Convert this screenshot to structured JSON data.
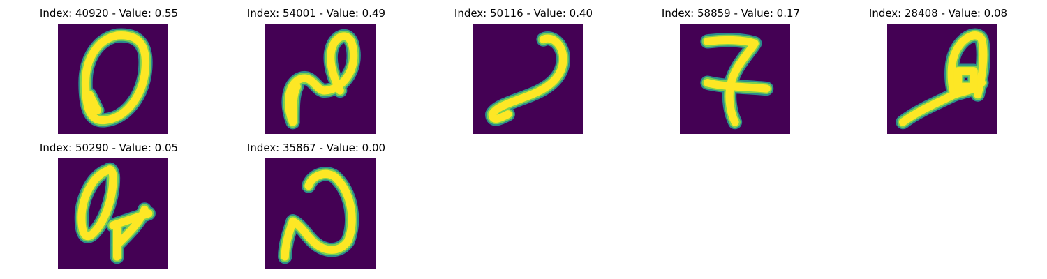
{
  "colors": {
    "background": "#440154",
    "edge": "#2c8c8c",
    "mid": "#7ad151",
    "stroke": "#fde725"
  },
  "panels": [
    {
      "title": "Index: 40920 - Value: 0.55"
    },
    {
      "title": "Index: 54001 - Value: 0.49"
    },
    {
      "title": "Index: 50116 - Value: 0.40"
    },
    {
      "title": "Index: 58859 - Value: 0.17"
    },
    {
      "title": "Index: 28408 - Value: 0.08"
    },
    {
      "title": "Index: 50290 - Value: 0.05"
    },
    {
      "title": "Index: 35867 - Value: 0.00"
    }
  ]
}
